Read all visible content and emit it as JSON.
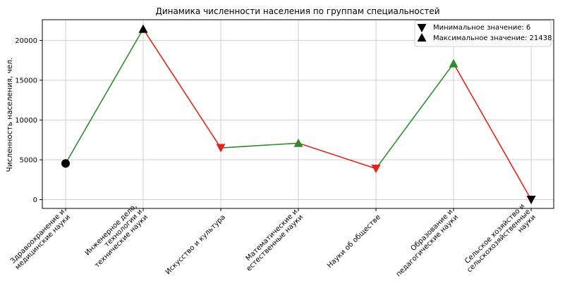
{
  "chart_data": {
    "type": "line",
    "title": "Динамика численности населения по группам специальностей",
    "xlabel": "",
    "ylabel": "Численность населения, чел.",
    "ylim": [
      -1100,
      22600
    ],
    "yticks": [
      0,
      5000,
      10000,
      15000,
      20000
    ],
    "grid": true,
    "legend_position": "top-right",
    "categories": [
      [
        "Здравоохранение и",
        "медицинские науки"
      ],
      [
        "Инженерное дело,",
        "технологии и",
        "технические науки"
      ],
      [
        "Искусство и культура"
      ],
      [
        "Математические и",
        "естественные науки"
      ],
      [
        "Науки об обществе"
      ],
      [
        "Образование и",
        "педагогические науки"
      ],
      [
        "Сельское хозяйство и",
        "сельскохозяйственные",
        "науки"
      ]
    ],
    "values": [
      4550,
      21438,
      6500,
      7100,
      3900,
      17100,
      6
    ],
    "markers": [
      "circle-black",
      "triangle-up-black",
      "triangle-down-red",
      "triangle-up-green",
      "triangle-down-red",
      "triangle-up-green",
      "triangle-down-black"
    ],
    "colors": {
      "increase": "#2e8b2e",
      "decrease": "#e0261a",
      "extreme": "#000000"
    },
    "legend": [
      {
        "label": "Минимальное значение: 6",
        "marker": "triangle-down-black"
      },
      {
        "label": "Максимальное значение: 21438",
        "marker": "triangle-up-black"
      }
    ]
  }
}
